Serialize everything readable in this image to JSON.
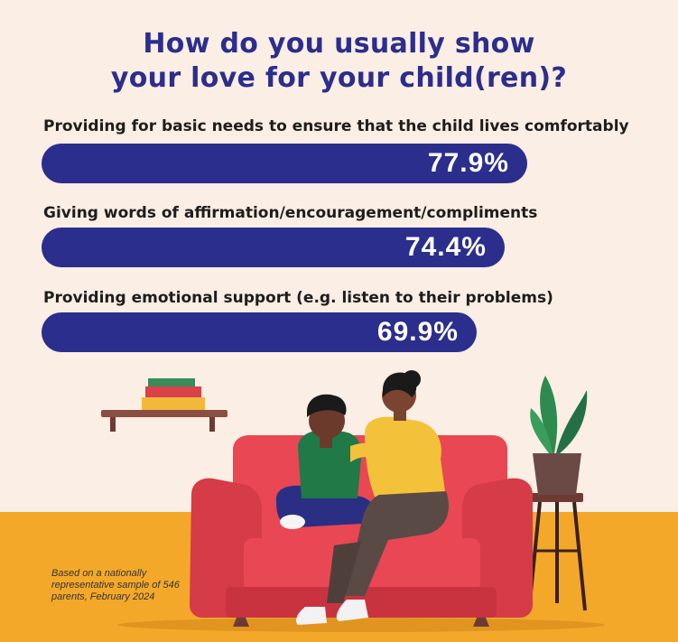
{
  "colors": {
    "wall": "#fbeee4",
    "floor": "#f4a82a",
    "title": "#2b2e8c",
    "bar": "#2b2e8c"
  },
  "title_lines": [
    "How do you usually show",
    "your love for your child(ren)?"
  ],
  "chart_data": {
    "type": "bar",
    "orientation": "horizontal",
    "title": "How do you usually show your love for your child(ren)?",
    "categories": [
      "Providing for basic needs to ensure that the child lives comfortably",
      "Giving words of affirmation/encouragement/compliments",
      "Providing emotional support (e.g. listen to their problems)"
    ],
    "values": [
      77.9,
      74.4,
      69.9
    ],
    "value_labels": [
      "77.9%",
      "74.4%",
      "69.9%"
    ],
    "unit": "%",
    "grid": false,
    "legend": "none"
  },
  "footnote": "Based on a nationally representative sample of 546 parents, February 2024",
  "illustration": {
    "icons": [
      "wall-shelf-with-books-icon",
      "potted-plant-icon",
      "red-armchair-icon",
      "mother-icon",
      "child-icon"
    ]
  }
}
